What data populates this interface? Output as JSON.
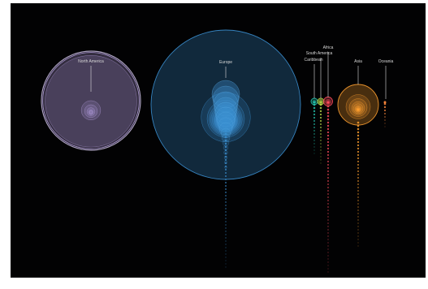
{
  "chart_data": {
    "type": "bubble",
    "title": "",
    "groups": [
      {
        "name": "North America",
        "color": "#b39ddb",
        "outer_size": 60,
        "inner_sizes": [
          60,
          57,
          12,
          8,
          5,
          3,
          2
        ]
      },
      {
        "name": "Europe",
        "color": "#3b8fd0",
        "outer_size": 100,
        "inner_sizes": [
          100,
          33,
          25,
          22,
          20,
          18,
          16,
          15,
          14,
          13,
          12,
          11,
          10,
          9,
          8,
          7,
          6,
          5,
          4,
          3,
          2,
          2,
          1,
          1,
          1,
          1,
          1,
          1,
          1,
          1,
          1,
          1
        ]
      },
      {
        "name": "Caribbean",
        "color": "#26c6b0",
        "outer_size": 4,
        "inner_sizes": [
          4,
          2,
          1,
          1,
          1,
          1,
          1,
          1,
          1,
          1
        ]
      },
      {
        "name": "South America",
        "color": "#b8d94a",
        "outer_size": 4,
        "inner_sizes": [
          4,
          3,
          2,
          1,
          1,
          1,
          1,
          1,
          1
        ]
      },
      {
        "name": "Africa",
        "color": "#ff4d5e",
        "outer_size": 5,
        "inner_sizes": [
          5,
          3,
          2,
          1,
          1,
          1,
          1,
          1,
          1,
          1,
          1,
          1,
          1,
          1,
          1,
          1,
          1,
          1
        ]
      },
      {
        "name": "Asia",
        "color": "#ffa030",
        "outer_size": 25,
        "inner_sizes": [
          25,
          15,
          11,
          8,
          6,
          4,
          3,
          2,
          2,
          1,
          1,
          1,
          1,
          1,
          1,
          1,
          1,
          1,
          1,
          1,
          1,
          1,
          1
        ]
      },
      {
        "name": "Oceania",
        "color": "#ff8a3d",
        "outer_size": 1,
        "inner_sizes": [
          1,
          1,
          1,
          1,
          1,
          1,
          1,
          1
        ]
      }
    ]
  }
}
